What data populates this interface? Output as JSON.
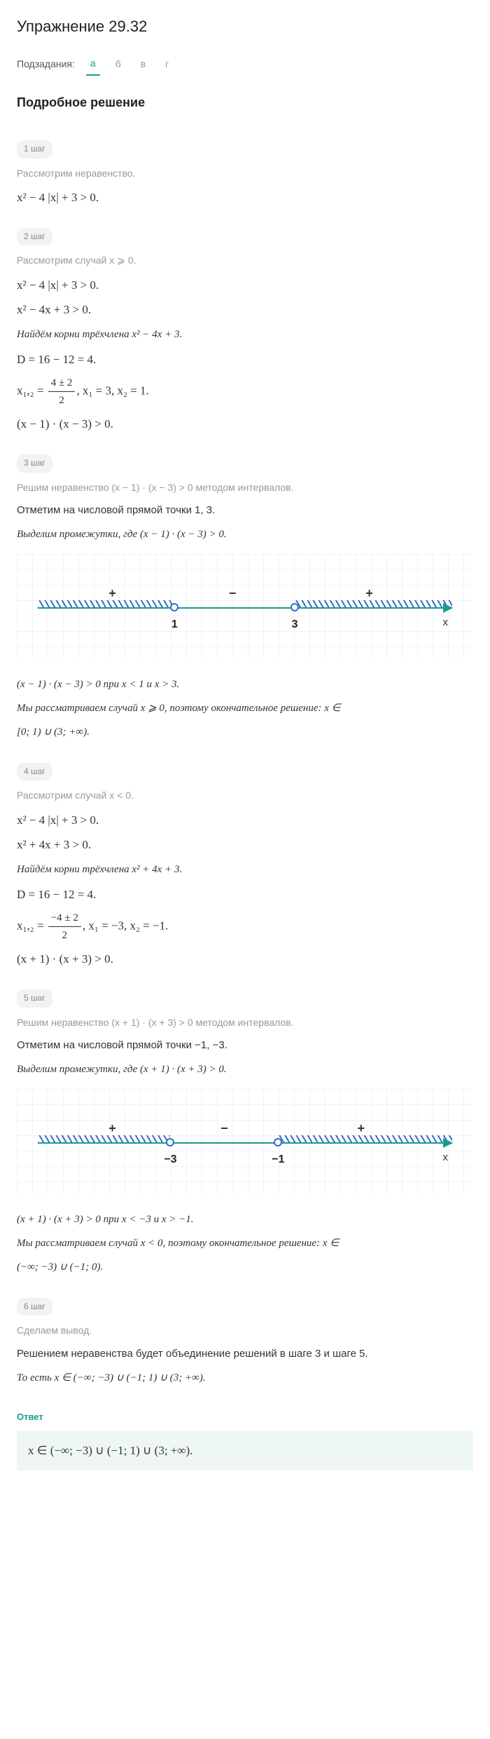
{
  "title": "Упражнение 29.32",
  "subtasks": {
    "label": "Подзадания:",
    "items": [
      "а",
      "б",
      "в",
      "г"
    ],
    "active_index": 0
  },
  "section_header": "Подробное решение",
  "steps": {
    "s1": {
      "badge": "1 шаг",
      "muted": "Рассмотрим неравенство.",
      "eq1": "x² − 4 |x| + 3 > 0."
    },
    "s2": {
      "badge": "2 шаг",
      "muted": "Рассмотрим случай x ⩾ 0.",
      "eq1": "x² − 4 |x| + 3 > 0.",
      "eq2": "x² − 4x + 3 > 0.",
      "text1": "Найдём корни трёхчлена x² − 4x + 3.",
      "eq3": "D = 16 − 12 = 4.",
      "frac_lhs": "x₁,₂ = ",
      "frac_num": "4 ± 2",
      "frac_den": "2",
      "frac_tail": ", x₁ = 3, x₂ = 1.",
      "eq4": "(x − 1) · (x − 3) > 0."
    },
    "s3": {
      "badge": "3 шаг",
      "muted": "Решим неравенство (x − 1) · (x − 3) > 0 методом интервалов.",
      "text1": "Отметим на числовой прямой точки 1, 3.",
      "text2": "Выделим промежутки, где (x − 1) · (x − 3) > 0.",
      "numberline": {
        "points": [
          {
            "label": "1",
            "pos_pct": 33
          },
          {
            "label": "3",
            "pos_pct": 62
          }
        ],
        "signs": [
          {
            "sym": "+",
            "pos_pct": 18
          },
          {
            "sym": "−",
            "pos_pct": 47
          },
          {
            "sym": "+",
            "pos_pct": 80
          }
        ],
        "hatch_regions": [
          {
            "left_pct": 0,
            "right_pct": 33
          },
          {
            "left_pct": 62,
            "right_pct": 100
          }
        ],
        "x_label": "x",
        "axis_color": "#1a9c8c",
        "hatch_color": "#356bcc"
      },
      "text3": "(x − 1) · (x − 3) > 0 при x < 1 и x > 3.",
      "text4_a": "Мы рассматриваем случай x ⩾ 0, поэтому окончательное решение: x ∈",
      "text4_b": "[0; 1) ∪ (3; +∞)."
    },
    "s4": {
      "badge": "4 шаг",
      "muted": "Рассмотрим случай x < 0.",
      "eq1": "x² − 4 |x| + 3 > 0.",
      "eq2": "x² + 4x + 3 > 0.",
      "text1": "Найдём корни трёхчлена x² + 4x + 3.",
      "eq3": "D = 16 − 12 = 4.",
      "frac_lhs": "x₁,₂ = ",
      "frac_num": "−4 ± 2",
      "frac_den": "2",
      "frac_tail": ", x₁ = −3, x₂ = −1.",
      "eq4": "(x + 1) · (x + 3) > 0."
    },
    "s5": {
      "badge": "5 шаг",
      "muted": "Решим неравенство (x + 1) · (x + 3) > 0 методом интервалов.",
      "text1": "Отметим на числовой прямой точки −1, −3.",
      "text2": "Выделим промежутки, где (x + 1) · (x + 3) > 0.",
      "numberline": {
        "points": [
          {
            "label": "−3",
            "pos_pct": 32
          },
          {
            "label": "−1",
            "pos_pct": 58
          }
        ],
        "signs": [
          {
            "sym": "+",
            "pos_pct": 18
          },
          {
            "sym": "−",
            "pos_pct": 45
          },
          {
            "sym": "+",
            "pos_pct": 78
          }
        ],
        "hatch_regions": [
          {
            "left_pct": 0,
            "right_pct": 32
          },
          {
            "left_pct": 58,
            "right_pct": 100
          }
        ],
        "x_label": "x",
        "axis_color": "#1a9c8c",
        "hatch_color": "#356bcc"
      },
      "text3": "(x + 1) · (x + 3) > 0 при x < −3 и x > −1.",
      "text4_a": "Мы рассматриваем случай x < 0, поэтому окончательное решение: x ∈",
      "text4_b": "(−∞; −3) ∪ (−1; 0)."
    },
    "s6": {
      "badge": "6 шаг",
      "muted": "Сделаем вывод.",
      "text1": "Решением неравенства будет объединение решений в шаге 3 и шаге 5.",
      "text2": "То есть x ∈ (−∞; −3) ∪ (−1; 1) ∪ (3; +∞)."
    }
  },
  "answer": {
    "label": "Ответ",
    "text": "x ∈ (−∞; −3) ∪ (−1; 1) ∪ (3; +∞).",
    "bg_color": "#eef7f5"
  }
}
